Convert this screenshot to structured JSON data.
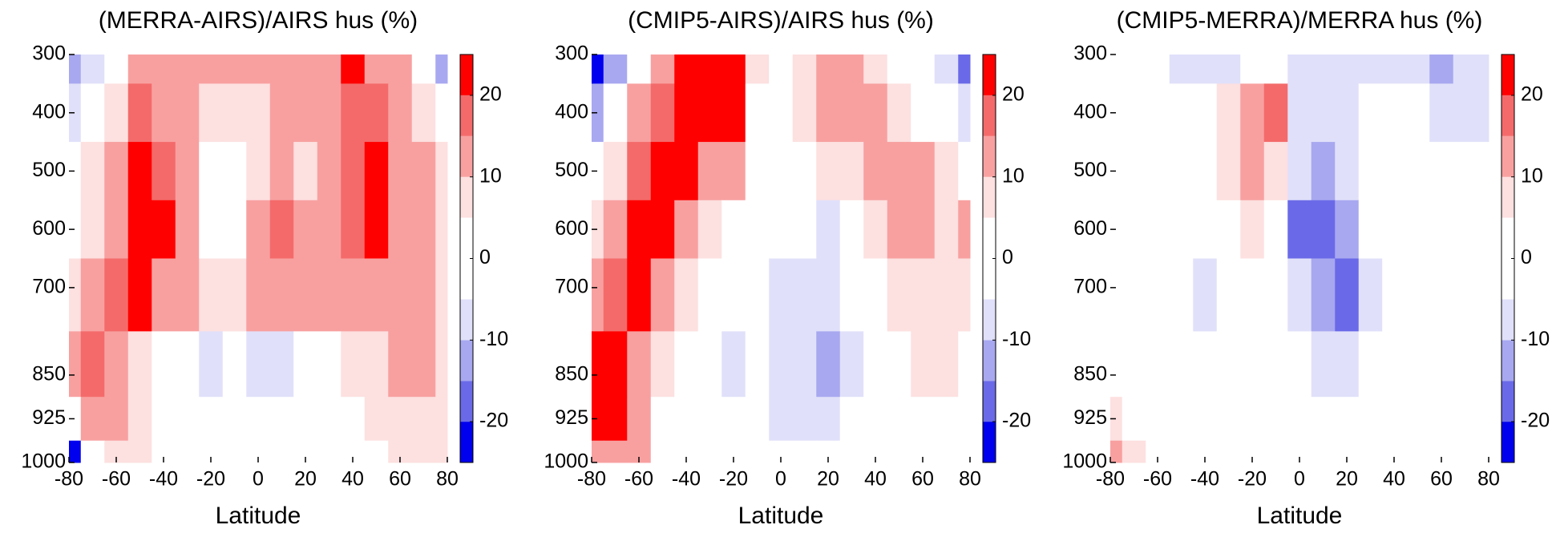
{
  "chart_data": [
    {
      "type": "heatmap",
      "title": "(MERRA-AIRS)/AIRS hus (%)",
      "xlabel": "Latitude",
      "x": [
        -80,
        -70,
        -60,
        -50,
        -40,
        -30,
        -20,
        -10,
        0,
        10,
        20,
        30,
        40,
        50,
        60,
        70,
        80
      ],
      "y": [
        300,
        400,
        500,
        600,
        700,
        850,
        925,
        1000
      ],
      "z": [
        [
          -12,
          -6,
          3,
          12,
          14,
          14,
          14,
          14,
          14,
          14,
          14,
          14,
          22,
          14,
          12,
          3,
          -12
        ],
        [
          -6,
          2,
          8,
          16,
          14,
          12,
          8,
          8,
          8,
          12,
          14,
          14,
          16,
          16,
          14,
          8,
          -2
        ],
        [
          2,
          6,
          12,
          22,
          18,
          12,
          4,
          3,
          7,
          13,
          8,
          12,
          16,
          22,
          14,
          10,
          6
        ],
        [
          2,
          8,
          14,
          22,
          21,
          12,
          4,
          2,
          12,
          17,
          13,
          14,
          16,
          22,
          14,
          12,
          8
        ],
        [
          8,
          12,
          18,
          22,
          14,
          10,
          6,
          6,
          10,
          12,
          12,
          12,
          14,
          14,
          14,
          12,
          8
        ],
        [
          12,
          16,
          14,
          8,
          2,
          -2,
          -8,
          -4,
          -7,
          -7,
          -4,
          2,
          6,
          8,
          10,
          10,
          8
        ],
        [
          0,
          14,
          10,
          6,
          2,
          -3,
          -3,
          -3,
          -3,
          -3,
          -2,
          0,
          4,
          6,
          8,
          8,
          6
        ],
        [
          -22,
          -5,
          8,
          6,
          2,
          0,
          -3,
          -3,
          -2,
          -2,
          0,
          0,
          2,
          4,
          6,
          6,
          6
        ]
      ],
      "xlim": [
        -80,
        80
      ],
      "ylim": [
        300,
        1000
      ],
      "y_inverted": true,
      "xticks": [
        -80,
        -60,
        -40,
        -20,
        0,
        20,
        40,
        60,
        80
      ],
      "yticks": [
        300,
        400,
        500,
        600,
        700,
        850,
        925,
        1000
      ],
      "levels": [
        -25,
        -20,
        -15,
        -10,
        -5,
        5,
        10,
        15,
        20,
        25
      ],
      "colors": [
        "#0000ee",
        "#6a6ae8",
        "#a8a8f0",
        "#e0e0fa",
        "#ffffff",
        "#fde0e0",
        "#f8a0a0",
        "#f46a6a",
        "#ff0000"
      ],
      "cbar_ticks": [
        -20,
        -10,
        0,
        10,
        20
      ]
    },
    {
      "type": "heatmap",
      "title": "(CMIP5-AIRS)/AIRS hus (%)",
      "xlabel": "Latitude",
      "x": [
        -80,
        -70,
        -60,
        -50,
        -40,
        -30,
        -20,
        -10,
        0,
        10,
        20,
        30,
        40,
        50,
        60,
        70,
        80
      ],
      "y": [
        300,
        400,
        500,
        600,
        700,
        850,
        925,
        1000
      ],
      "z": [
        [
          -22,
          -12,
          4,
          14,
          22,
          22,
          22,
          8,
          2,
          6,
          10,
          10,
          6,
          4,
          2,
          -8,
          -20
        ],
        [
          -12,
          2,
          10,
          18,
          22,
          22,
          22,
          4,
          2,
          6,
          10,
          14,
          10,
          8,
          4,
          -2,
          -10
        ],
        [
          -2,
          6,
          16,
          22,
          22,
          14,
          10,
          2,
          -2,
          2,
          6,
          8,
          10,
          14,
          10,
          6,
          2
        ],
        [
          6,
          12,
          22,
          22,
          14,
          8,
          2,
          -2,
          -4,
          -2,
          -6,
          4,
          8,
          14,
          12,
          8,
          10
        ],
        [
          14,
          18,
          22,
          12,
          6,
          2,
          -2,
          -4,
          -6,
          -6,
          -10,
          -4,
          4,
          8,
          8,
          6,
          6
        ],
        [
          22,
          22,
          14,
          6,
          2,
          -4,
          -8,
          -4,
          -6,
          -8,
          -12,
          -6,
          0,
          4,
          6,
          6,
          4
        ],
        [
          22,
          22,
          12,
          4,
          2,
          -2,
          -4,
          -4,
          -6,
          -6,
          -6,
          -4,
          -2,
          2,
          4,
          4,
          4
        ],
        [
          12,
          14,
          10,
          4,
          0,
          -2,
          -2,
          -4,
          -4,
          -4,
          -4,
          -4,
          -2,
          2,
          4,
          4,
          2
        ]
      ],
      "xlim": [
        -80,
        80
      ],
      "ylim": [
        300,
        1000
      ],
      "y_inverted": true,
      "xticks": [
        -80,
        -60,
        -40,
        -20,
        0,
        20,
        40,
        60,
        80
      ],
      "yticks": [
        300,
        400,
        500,
        600,
        700,
        850,
        925,
        1000
      ],
      "levels": [
        -25,
        -20,
        -15,
        -10,
        -5,
        5,
        10,
        15,
        20,
        25
      ],
      "colors": [
        "#0000ee",
        "#6a6ae8",
        "#a8a8f0",
        "#e0e0fa",
        "#ffffff",
        "#fde0e0",
        "#f8a0a0",
        "#f46a6a",
        "#ff0000"
      ],
      "cbar_ticks": [
        -20,
        -10,
        0,
        10,
        20
      ]
    },
    {
      "type": "heatmap",
      "title": "(CMIP5-MERRA)/MERRA hus (%)",
      "xlabel": "Latitude",
      "x": [
        -80,
        -70,
        -60,
        -50,
        -40,
        -30,
        -20,
        -10,
        0,
        10,
        20,
        30,
        40,
        50,
        60,
        70,
        80
      ],
      "y": [
        300,
        400,
        500,
        600,
        700,
        850,
        925,
        1000
      ],
      "z": [
        [
          0,
          0,
          -2,
          -6,
          -6,
          -6,
          0,
          0,
          -8,
          -6,
          -6,
          -6,
          -6,
          -6,
          -12,
          -8,
          -6
        ],
        [
          -2,
          0,
          0,
          0,
          2,
          8,
          14,
          18,
          -8,
          -10,
          -6,
          -4,
          -4,
          -4,
          -6,
          -6,
          -6
        ],
        [
          -2,
          0,
          0,
          0,
          2,
          8,
          12,
          8,
          -10,
          -12,
          -6,
          -4,
          -2,
          -2,
          -2,
          -2,
          -2
        ],
        [
          0,
          0,
          0,
          0,
          0,
          4,
          6,
          2,
          -16,
          -20,
          -12,
          -4,
          -2,
          -2,
          0,
          0,
          0
        ],
        [
          0,
          0,
          0,
          -2,
          -6,
          0,
          0,
          0,
          -8,
          -14,
          -16,
          -8,
          -2,
          0,
          0,
          0,
          0
        ],
        [
          4,
          0,
          0,
          0,
          0,
          0,
          0,
          0,
          -4,
          -6,
          -6,
          -4,
          -2,
          0,
          0,
          0,
          0
        ],
        [
          8,
          4,
          0,
          0,
          0,
          0,
          0,
          0,
          -2,
          -4,
          -4,
          -2,
          0,
          0,
          0,
          0,
          0
        ],
        [
          12,
          6,
          2,
          0,
          0,
          0,
          0,
          0,
          -2,
          -2,
          -2,
          0,
          0,
          0,
          0,
          0,
          0
        ]
      ],
      "xlim": [
        -80,
        80
      ],
      "ylim": [
        300,
        1000
      ],
      "y_inverted": true,
      "xticks": [
        -80,
        -60,
        -40,
        -20,
        0,
        20,
        40,
        60,
        80
      ],
      "yticks": [
        300,
        400,
        500,
        600,
        700,
        850,
        925,
        1000
      ],
      "levels": [
        -25,
        -20,
        -15,
        -10,
        -5,
        5,
        10,
        15,
        20,
        25
      ],
      "colors": [
        "#0000ee",
        "#6a6ae8",
        "#a8a8f0",
        "#e0e0fa",
        "#ffffff",
        "#fde0e0",
        "#f8a0a0",
        "#f46a6a",
        "#ff0000"
      ],
      "cbar_ticks": [
        -20,
        -10,
        0,
        10,
        20
      ]
    }
  ]
}
